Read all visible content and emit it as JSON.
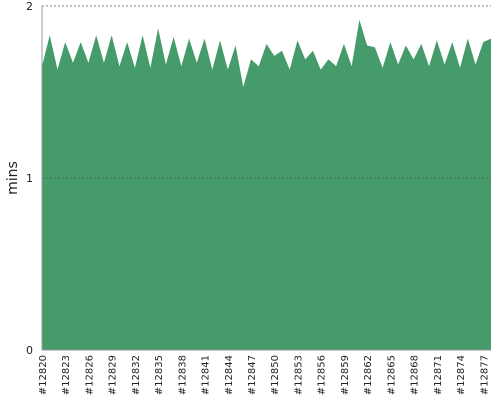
{
  "chart_data": {
    "type": "area",
    "y_label": "mins",
    "color": "#459c6a",
    "categories": [
      "#12820",
      null,
      null,
      "#12823",
      null,
      null,
      "#12826",
      null,
      null,
      "#12829",
      null,
      null,
      "#12832",
      null,
      null,
      "#12835",
      null,
      null,
      "#12838",
      null,
      null,
      "#12841",
      null,
      null,
      "#12844",
      null,
      null,
      "#12847",
      null,
      null,
      "#12850",
      null,
      null,
      "#12853",
      null,
      null,
      "#12856",
      null,
      null,
      "#12859",
      null,
      null,
      "#12862",
      null,
      null,
      "#12865",
      null,
      null,
      "#12868",
      null,
      null,
      "#12871",
      null,
      null,
      "#12874",
      null,
      null,
      "#12877",
      null
    ],
    "values": [
      1.65,
      1.83,
      1.63,
      1.79,
      1.67,
      1.79,
      1.67,
      1.83,
      1.67,
      1.83,
      1.65,
      1.79,
      1.64,
      1.83,
      1.64,
      1.87,
      1.66,
      1.82,
      1.65,
      1.81,
      1.67,
      1.81,
      1.63,
      1.8,
      1.63,
      1.77,
      1.53,
      1.69,
      1.65,
      1.78,
      1.71,
      1.74,
      1.63,
      1.8,
      1.69,
      1.74,
      1.63,
      1.69,
      1.65,
      1.78,
      1.65,
      1.92,
      1.77,
      1.76,
      1.64,
      1.79,
      1.66,
      1.77,
      1.69,
      1.78,
      1.65,
      1.8,
      1.66,
      1.79,
      1.64,
      1.81,
      1.66,
      1.79,
      1.81
    ],
    "ylim": [
      0,
      2
    ],
    "yticks": [
      0,
      1,
      2
    ],
    "grid": true
  }
}
